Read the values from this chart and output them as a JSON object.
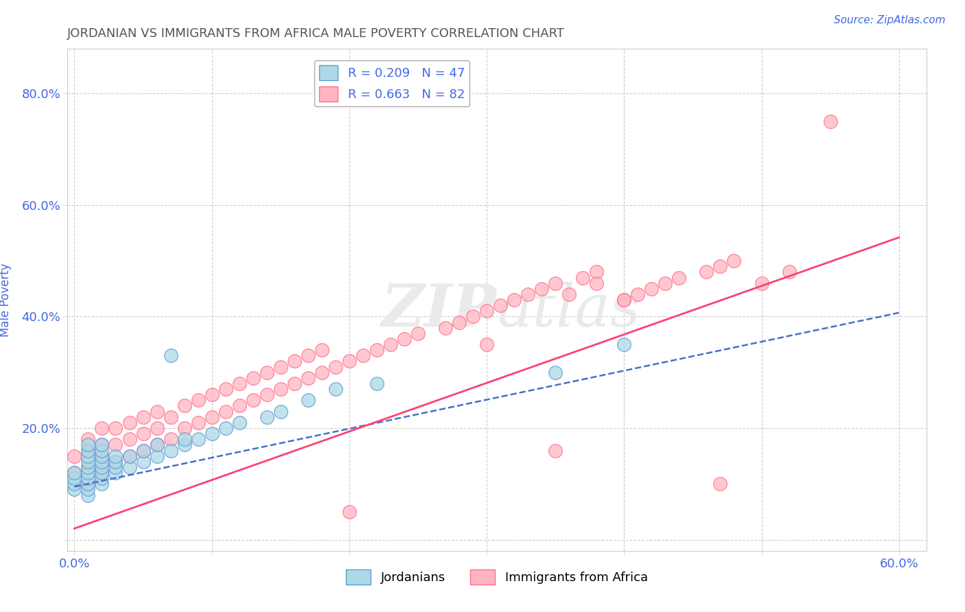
{
  "title": "JORDANIAN VS IMMIGRANTS FROM AFRICA MALE POVERTY CORRELATION CHART",
  "source_text": "Source: ZipAtlas.com",
  "ylabel": "Male Poverty",
  "xlim": [
    -0.005,
    0.62
  ],
  "ylim": [
    -0.02,
    0.88
  ],
  "xticks": [
    0.0,
    0.1,
    0.2,
    0.3,
    0.4,
    0.5,
    0.6
  ],
  "yticks": [
    0.0,
    0.2,
    0.4,
    0.6,
    0.8
  ],
  "legend_1_label": "R = 0.209   N = 47",
  "legend_2_label": "R = 0.663   N = 82",
  "jordanians_label": "Jordanians",
  "africa_label": "Immigrants from Africa",
  "color_jordan": "#ADD8E6",
  "color_africa": "#FFB6C1",
  "border_jordan": "#5B9BD5",
  "border_africa": "#FF6B8A",
  "trendline_jordan_color": "#4472C4",
  "trendline_africa_color": "#FF4070",
  "background_color": "#FFFFFF",
  "title_color": "#555555",
  "axis_label_color": "#4169E1",
  "tick_color": "#4169E1",
  "watermark_color": "#EAEAEA",
  "jordan_intercept": 0.095,
  "jordan_slope": 0.52,
  "africa_intercept": 0.02,
  "africa_slope": 0.87,
  "jordan_scatter_x": [
    0.0,
    0.0,
    0.0,
    0.0,
    0.01,
    0.01,
    0.01,
    0.01,
    0.01,
    0.01,
    0.01,
    0.01,
    0.01,
    0.01,
    0.02,
    0.02,
    0.02,
    0.02,
    0.02,
    0.02,
    0.02,
    0.02,
    0.03,
    0.03,
    0.03,
    0.03,
    0.04,
    0.04,
    0.05,
    0.05,
    0.06,
    0.06,
    0.07,
    0.07,
    0.08,
    0.08,
    0.09,
    0.1,
    0.11,
    0.12,
    0.14,
    0.15,
    0.17,
    0.19,
    0.22,
    0.35,
    0.4
  ],
  "jordan_scatter_y": [
    0.09,
    0.1,
    0.11,
    0.12,
    0.08,
    0.09,
    0.1,
    0.11,
    0.12,
    0.13,
    0.14,
    0.15,
    0.16,
    0.17,
    0.1,
    0.11,
    0.12,
    0.13,
    0.14,
    0.15,
    0.16,
    0.17,
    0.12,
    0.13,
    0.14,
    0.15,
    0.13,
    0.15,
    0.14,
    0.16,
    0.15,
    0.17,
    0.16,
    0.33,
    0.17,
    0.18,
    0.18,
    0.19,
    0.2,
    0.21,
    0.22,
    0.23,
    0.25,
    0.27,
    0.28,
    0.3,
    0.35
  ],
  "africa_scatter_x": [
    0.0,
    0.0,
    0.01,
    0.01,
    0.01,
    0.01,
    0.02,
    0.02,
    0.02,
    0.02,
    0.03,
    0.03,
    0.03,
    0.04,
    0.04,
    0.04,
    0.05,
    0.05,
    0.05,
    0.06,
    0.06,
    0.06,
    0.07,
    0.07,
    0.08,
    0.08,
    0.09,
    0.09,
    0.1,
    0.1,
    0.11,
    0.11,
    0.12,
    0.12,
    0.13,
    0.13,
    0.14,
    0.14,
    0.15,
    0.15,
    0.16,
    0.16,
    0.17,
    0.17,
    0.18,
    0.18,
    0.19,
    0.2,
    0.21,
    0.22,
    0.23,
    0.24,
    0.25,
    0.27,
    0.28,
    0.29,
    0.3,
    0.31,
    0.32,
    0.33,
    0.34,
    0.35,
    0.37,
    0.38,
    0.4,
    0.41,
    0.42,
    0.43,
    0.44,
    0.46,
    0.47,
    0.48,
    0.5,
    0.52,
    0.4,
    0.38,
    0.36,
    0.3,
    0.2,
    0.55,
    0.47,
    0.35
  ],
  "africa_scatter_y": [
    0.12,
    0.15,
    0.1,
    0.13,
    0.16,
    0.18,
    0.12,
    0.15,
    0.17,
    0.2,
    0.14,
    0.17,
    0.2,
    0.15,
    0.18,
    0.21,
    0.16,
    0.19,
    0.22,
    0.17,
    0.2,
    0.23,
    0.18,
    0.22,
    0.2,
    0.24,
    0.21,
    0.25,
    0.22,
    0.26,
    0.23,
    0.27,
    0.24,
    0.28,
    0.25,
    0.29,
    0.26,
    0.3,
    0.27,
    0.31,
    0.28,
    0.32,
    0.29,
    0.33,
    0.3,
    0.34,
    0.31,
    0.32,
    0.33,
    0.34,
    0.35,
    0.36,
    0.37,
    0.38,
    0.39,
    0.4,
    0.41,
    0.42,
    0.43,
    0.44,
    0.45,
    0.46,
    0.47,
    0.48,
    0.43,
    0.44,
    0.45,
    0.46,
    0.47,
    0.48,
    0.49,
    0.5,
    0.46,
    0.48,
    0.43,
    0.46,
    0.44,
    0.35,
    0.05,
    0.75,
    0.1,
    0.16
  ]
}
